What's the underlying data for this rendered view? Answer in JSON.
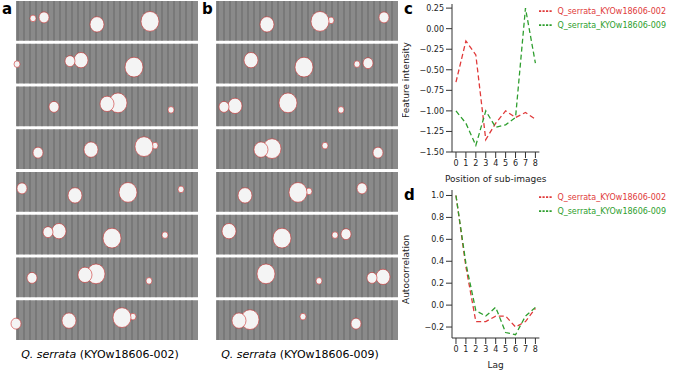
{
  "images": [
    {
      "panel_label": "a",
      "caption_species": "Q. serrata",
      "caption_id": "(KYOw18606-002)"
    },
    {
      "panel_label": "b",
      "caption_species": "Q. serrata",
      "caption_id": "(KYOw18606-009)"
    }
  ],
  "chart_data": [
    {
      "type": "line",
      "panel_label": "c",
      "x_label": "Position of sub-images",
      "y_label": "Feature intensity",
      "x": [
        0,
        1,
        2,
        3,
        4,
        5,
        6,
        7,
        8
      ],
      "series": [
        {
          "name": "Q_serrata_KYOw18606-002",
          "color": "#e03a3a",
          "line_style": "dashed",
          "values": [
            -0.65,
            -0.15,
            -0.32,
            -1.35,
            -1.15,
            -1.0,
            -1.08,
            -1.02,
            -1.1
          ]
        },
        {
          "name": "Q_serrata_KYOw18606-009",
          "color": "#2e9e2e",
          "line_style": "dashed",
          "values": [
            -1.0,
            -1.15,
            -1.42,
            -1.0,
            -1.2,
            -1.17,
            -1.08,
            0.25,
            -0.42
          ]
        }
      ],
      "xlim": [
        -0.4,
        8.4
      ],
      "xticks": [
        0,
        1,
        2,
        3,
        4,
        5,
        6,
        7,
        8
      ],
      "ylim": [
        -1.5,
        0.3
      ],
      "yticks": [
        {
          "value": -1.5,
          "label": "−1.50"
        },
        {
          "value": -1.25,
          "label": "−1.25"
        },
        {
          "value": -1.0,
          "label": "−1.00"
        },
        {
          "value": -0.75,
          "label": "−0.75"
        },
        {
          "value": -0.5,
          "label": "−0.50"
        },
        {
          "value": -0.25,
          "label": "−0.25"
        },
        {
          "value": 0,
          "label": "0.00"
        },
        {
          "value": 0.25,
          "label": "0.25"
        }
      ],
      "legend": "upper right",
      "grid": false
    },
    {
      "type": "line",
      "panel_label": "d",
      "x_label": "Lag",
      "y_label": "Autocorrelation",
      "x": [
        0,
        1,
        2,
        3,
        4,
        5,
        6,
        7,
        8
      ],
      "series": [
        {
          "name": "Q_serrata_KYOw18606-002",
          "color": "#e03a3a",
          "line_style": "dashed",
          "values": [
            1.0,
            0.35,
            -0.15,
            -0.15,
            -0.1,
            -0.1,
            -0.2,
            -0.15,
            -0.03
          ]
        },
        {
          "name": "Q_serrata_KYOw18606-009",
          "color": "#2e9e2e",
          "line_style": "dashed",
          "values": [
            1.0,
            0.38,
            -0.05,
            -0.1,
            -0.02,
            -0.25,
            -0.27,
            -0.1,
            -0.02
          ]
        }
      ],
      "xlim": [
        -0.4,
        8.4
      ],
      "xticks": [
        0,
        1,
        2,
        3,
        4,
        5,
        6,
        7,
        8
      ],
      "ylim": [
        -0.3,
        1.05
      ],
      "yticks": [
        {
          "value": -0.2,
          "label": "−0.2"
        },
        {
          "value": 0,
          "label": "0.0"
        },
        {
          "value": 0.2,
          "label": "0.2"
        },
        {
          "value": 0.4,
          "label": "0.4"
        },
        {
          "value": 0.6,
          "label": "0.6"
        },
        {
          "value": 0.8,
          "label": "0.8"
        },
        {
          "value": 1.0,
          "label": "1.0"
        }
      ],
      "legend": "upper right",
      "grid": false
    }
  ]
}
